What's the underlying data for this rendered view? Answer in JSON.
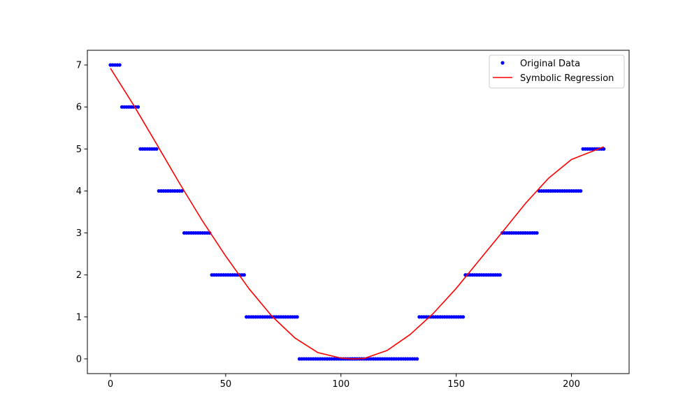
{
  "chart_data": {
    "type": "scatter",
    "title": "",
    "xlabel": "",
    "ylabel": "",
    "xlim": [
      -10,
      225
    ],
    "ylim": [
      -0.35,
      7.35
    ],
    "x_ticks": [
      0,
      50,
      100,
      150,
      200
    ],
    "y_ticks": [
      0,
      1,
      2,
      3,
      4,
      5,
      6,
      7
    ],
    "grid": false,
    "legend_position": "top-right",
    "series": [
      {
        "name": "Original Data",
        "kind": "scatter",
        "color": "#0000ff",
        "segments": [
          {
            "x_start": 0,
            "x_end": 4,
            "y": 7
          },
          {
            "x_start": 5,
            "x_end": 12,
            "y": 6
          },
          {
            "x_start": 13,
            "x_end": 20,
            "y": 5
          },
          {
            "x_start": 21,
            "x_end": 31,
            "y": 4
          },
          {
            "x_start": 32,
            "x_end": 43,
            "y": 3
          },
          {
            "x_start": 44,
            "x_end": 58,
            "y": 2
          },
          {
            "x_start": 59,
            "x_end": 81,
            "y": 1
          },
          {
            "x_start": 82,
            "x_end": 133,
            "y": 0
          },
          {
            "x_start": 134,
            "x_end": 153,
            "y": 1
          },
          {
            "x_start": 154,
            "x_end": 169,
            "y": 2
          },
          {
            "x_start": 170,
            "x_end": 185,
            "y": 3
          },
          {
            "x_start": 186,
            "x_end": 204,
            "y": 4
          },
          {
            "x_start": 205,
            "x_end": 214,
            "y": 5
          }
        ]
      },
      {
        "name": "Symbolic Regression",
        "kind": "line",
        "color": "#ff0000",
        "x": [
          0,
          10,
          20,
          30,
          40,
          50,
          60,
          70,
          80,
          90,
          100,
          105,
          110,
          120,
          130,
          140,
          150,
          160,
          170,
          180,
          190,
          200,
          214
        ],
        "y": [
          6.92,
          6.05,
          5.12,
          4.18,
          3.28,
          2.45,
          1.68,
          1.02,
          0.5,
          0.15,
          0.02,
          0.0,
          0.01,
          0.2,
          0.58,
          1.08,
          1.68,
          2.35,
          3.02,
          3.7,
          4.3,
          4.75,
          5.05
        ]
      }
    ]
  }
}
